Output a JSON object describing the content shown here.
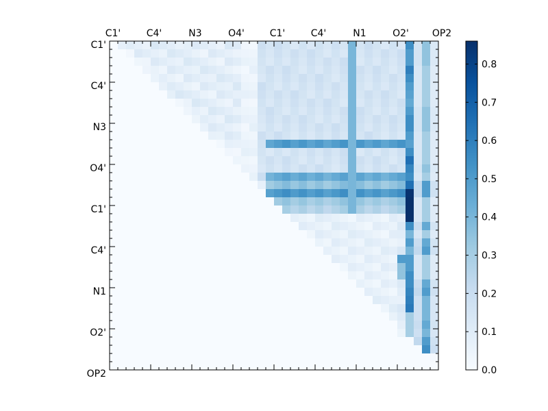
{
  "chart_data": {
    "type": "heatmap",
    "title": "",
    "xlabel": "",
    "ylabel": "",
    "n": 40,
    "x_ticklabels": [
      "C1'",
      "C4'",
      "N3",
      "O4'",
      "C1'",
      "C4'",
      "N1",
      "O2'",
      "OP2"
    ],
    "y_ticklabels": [
      "C1'",
      "C4'",
      "N3",
      "O4'",
      "C1'",
      "C4'",
      "N1",
      "O2'",
      "OP2"
    ],
    "colormap": "Blues",
    "colorbar": {
      "range": [
        0.0,
        0.86
      ],
      "ticks": [
        "0.0",
        "0.1",
        "0.2",
        "0.3",
        "0.4",
        "0.5",
        "0.6",
        "0.7",
        "0.8"
      ]
    },
    "colors": {
      "low": "#f7fbff",
      "mid": "#6baed6",
      "high": "#08306b"
    },
    "description_values": {
      "upper_triangle_background": 0.03,
      "lower_triangle": 0.0,
      "column_29_values": [
        0.42,
        0.4,
        0.4,
        0.4,
        0.39,
        0.4,
        0.39,
        0.4,
        0.39,
        0.4,
        0.42,
        0.4,
        0.39,
        0.4,
        0.4,
        0.4,
        0.4,
        0.4,
        0.4,
        0.4,
        0.4
      ],
      "column_36_values": [
        0.55,
        0.5,
        0.5,
        0.6,
        0.55,
        0.5,
        0.48,
        0.45,
        0.5,
        0.55,
        0.55,
        0.5,
        0.48,
        0.55,
        0.65,
        0.58,
        0.55,
        0.65,
        0.85,
        0.86,
        0.86,
        0.86,
        0.55,
        0.4,
        0.5,
        0.4,
        0.5,
        0.5,
        0.55,
        0.55,
        0.58,
        0.6,
        0.62,
        0.3,
        0.3,
        0.3,
        0.15,
        0.05,
        0.03,
        0.02
      ],
      "column_38_values": [
        0.35,
        0.35,
        0.35,
        0.3,
        0.3,
        0.3,
        0.3,
        0.3,
        0.35,
        0.35,
        0.35,
        0.3,
        0.3,
        0.3,
        0.3,
        0.35,
        0.3,
        0.5,
        0.5,
        0.3,
        0.3,
        0.3,
        0.45,
        0.3,
        0.45,
        0.5,
        0.3,
        0.3,
        0.3,
        0.45,
        0.5,
        0.4,
        0.4,
        0.4,
        0.45,
        0.4,
        0.5,
        0.55,
        0.03,
        0.02
      ],
      "row_12_band": 0.53,
      "row_16_band": 0.48,
      "row_17_band": 0.38,
      "row_18_band": 0.55,
      "row_19_band": 0.35,
      "row_20_band": 0.3
    }
  }
}
